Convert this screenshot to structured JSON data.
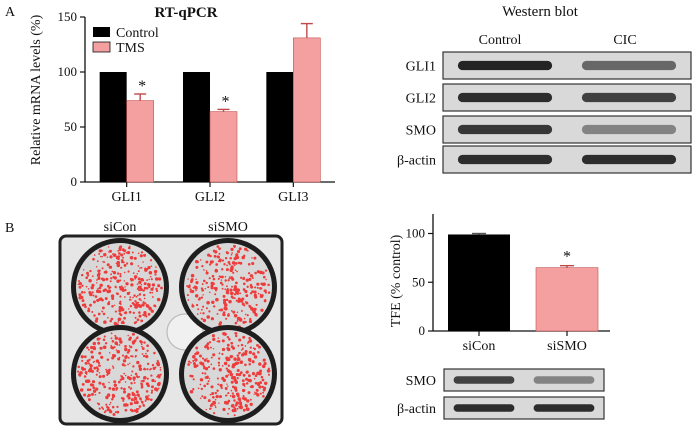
{
  "panel_labels": {
    "a": "A",
    "b": "B"
  },
  "colors": {
    "control": "#000000",
    "treated": "#f4a0a0",
    "dish_cell": "#ee3b3b",
    "blot_bg": "#d9d9d9",
    "blot_band": "#1a1a1a"
  },
  "chart_data": [
    {
      "id": "rt_qpcr",
      "type": "bar",
      "title": "RT-qPCR",
      "xlabel": "",
      "ylabel": "Relative mRNA levels (%)",
      "ylim": [
        0,
        150
      ],
      "yticks": [
        0,
        50,
        100,
        150
      ],
      "categories": [
        "GLI1",
        "GLI2",
        "GLI3"
      ],
      "series": [
        {
          "name": "Control",
          "values": [
            100,
            100,
            100
          ],
          "errors": [
            0,
            0,
            0
          ]
        },
        {
          "name": "TMS",
          "values": [
            74,
            64,
            131
          ],
          "errors": [
            6,
            2,
            13
          ]
        }
      ],
      "significance": [
        "*",
        "*",
        ""
      ],
      "legend": "top-left"
    },
    {
      "id": "tfe",
      "type": "bar",
      "title": "",
      "xlabel": "",
      "ylabel": "TFE (% control)",
      "ylim": [
        0,
        120
      ],
      "yticks": [
        0,
        50,
        100
      ],
      "categories": [
        "siCon",
        "siSMO"
      ],
      "values": [
        99,
        65
      ],
      "errors": [
        1,
        2
      ],
      "significance": [
        "",
        "*"
      ]
    }
  ],
  "western_a": {
    "title": "Western blot",
    "columns": [
      "Control",
      "CIC"
    ],
    "rows": [
      {
        "label": "GLI1",
        "bands": [
          0.95,
          0.6
        ]
      },
      {
        "label": "GLI2",
        "bands": [
          0.9,
          0.8
        ]
      },
      {
        "label": "SMO",
        "bands": [
          0.85,
          0.45
        ]
      },
      {
        "label": "β-actin",
        "bands": [
          0.9,
          0.9
        ]
      }
    ]
  },
  "western_b": {
    "rows": [
      {
        "label": "SMO",
        "bands": [
          0.8,
          0.45
        ]
      },
      {
        "label": "β-actin",
        "bands": [
          0.9,
          0.9
        ]
      }
    ]
  },
  "plate": {
    "labels": [
      "siCon",
      "siSMO"
    ]
  }
}
